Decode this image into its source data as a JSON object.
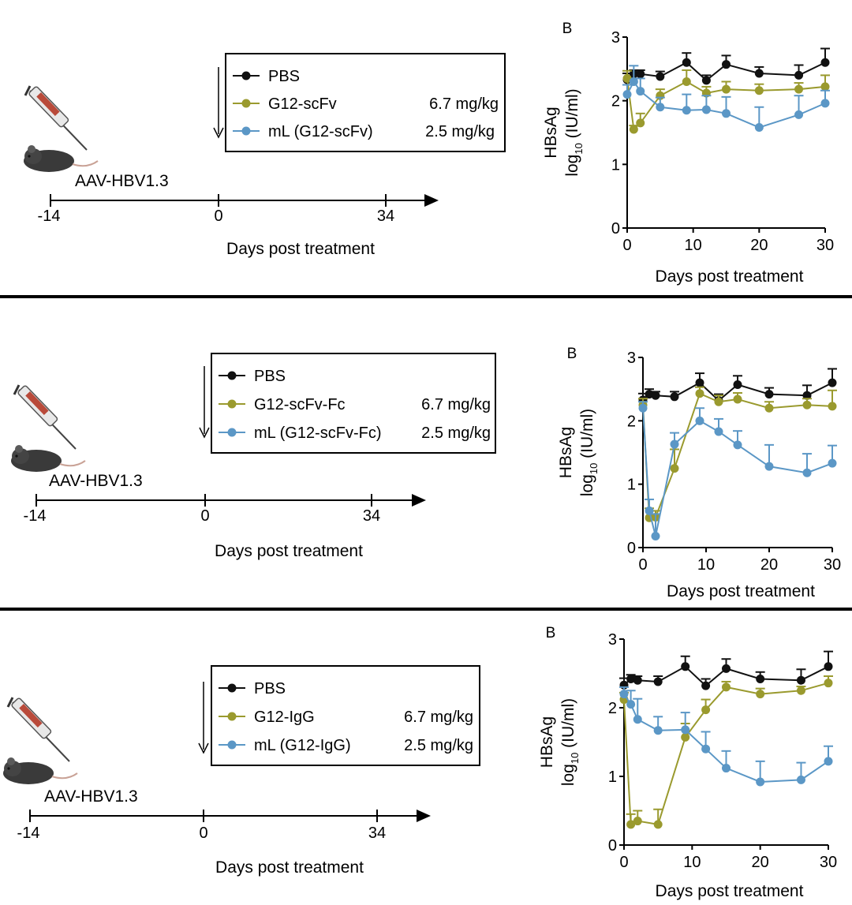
{
  "common": {
    "model_label": "AAV-HBV1.3",
    "timeline_ticks": [
      "-14",
      "0",
      "34"
    ],
    "timeline_xlabel": "Days post treatment",
    "panel_letter": "B"
  },
  "panels": [
    {
      "legend": [
        {
          "label": "PBS",
          "dose": ""
        },
        {
          "label": "G12-scFv",
          "dose": "6.7 mg/kg"
        },
        {
          "label": "mL (G12-scFv)",
          "dose": "2.5 mg/kg"
        }
      ]
    },
    {
      "legend": [
        {
          "label": "PBS",
          "dose": ""
        },
        {
          "label": "G12-scFv-Fc",
          "dose": "6.7 mg/kg"
        },
        {
          "label": "mL (G12-scFv-Fc)",
          "dose": "2.5 mg/kg"
        }
      ]
    },
    {
      "legend": [
        {
          "label": "PBS",
          "dose": ""
        },
        {
          "label": "G12-IgG",
          "dose": "6.7 mg/kg"
        },
        {
          "label": "mL (G12-IgG)",
          "dose": "2.5 mg/kg"
        }
      ]
    }
  ],
  "chart_data": [
    {
      "type": "line",
      "title": "B",
      "xlabel": "Days post treatment",
      "ylabel_line1": "HBsAg",
      "ylabel_log": "log",
      "ylabel_sub": "10",
      "ylabel_unit": "(IU/ml)",
      "xlim": [
        0,
        30
      ],
      "ylim": [
        0,
        3
      ],
      "xticks": [
        0,
        10,
        20,
        30
      ],
      "yticks": [
        0,
        1,
        2,
        3
      ],
      "xtick_labels": [
        "0",
        "10",
        "20",
        "30"
      ],
      "ytick_labels": [
        "0",
        "1",
        "2",
        "3"
      ],
      "x": [
        0,
        1,
        2,
        5,
        9,
        12,
        15,
        20,
        26,
        30
      ],
      "series": [
        {
          "name": "PBS",
          "color": "#111111",
          "values": [
            2.33,
            2.42,
            2.42,
            2.38,
            2.6,
            2.32,
            2.57,
            2.43,
            2.4,
            2.6
          ],
          "errors": [
            0.1,
            0.06,
            0.06,
            0.08,
            0.15,
            0.08,
            0.14,
            0.1,
            0.16,
            0.22
          ]
        },
        {
          "name": "G12-scFv",
          "color": "#9a9a2e",
          "values": [
            2.35,
            1.55,
            1.65,
            2.08,
            2.3,
            2.12,
            2.18,
            2.16,
            2.18,
            2.22
          ],
          "errors": [
            0.12,
            0.06,
            0.15,
            0.1,
            0.18,
            0.1,
            0.12,
            0.1,
            0.1,
            0.18
          ]
        },
        {
          "name": "mL (G12-scFv)",
          "color": "#5b97c6",
          "values": [
            2.1,
            2.3,
            2.15,
            1.9,
            1.85,
            1.86,
            1.8,
            1.58,
            1.78,
            1.96
          ],
          "errors": [
            0.15,
            0.25,
            0.2,
            0.15,
            0.25,
            0.22,
            0.26,
            0.32,
            0.3,
            0.2
          ]
        }
      ]
    },
    {
      "type": "line",
      "title": "B",
      "xlabel": "Days post treatment",
      "ylabel_line1": "HBsAg",
      "ylabel_log": "log",
      "ylabel_sub": "10",
      "ylabel_unit": "(IU/ml)",
      "xlim": [
        0,
        30
      ],
      "ylim": [
        0,
        3
      ],
      "xticks": [
        0,
        10,
        20,
        30
      ],
      "yticks": [
        0,
        1,
        2,
        3
      ],
      "xtick_labels": [
        "0",
        "10",
        "20",
        "30"
      ],
      "ytick_labels": [
        "0",
        "1",
        "2",
        "3"
      ],
      "x": [
        0,
        1,
        2,
        5,
        9,
        12,
        15,
        20,
        26,
        30
      ],
      "series": [
        {
          "name": "PBS",
          "color": "#111111",
          "values": [
            2.33,
            2.42,
            2.4,
            2.38,
            2.6,
            2.32,
            2.57,
            2.42,
            2.4,
            2.6
          ],
          "errors": [
            0.1,
            0.08,
            0.06,
            0.08,
            0.15,
            0.1,
            0.14,
            0.1,
            0.16,
            0.22
          ]
        },
        {
          "name": "G12-scFv-Fc",
          "color": "#9a9a2e",
          "values": [
            2.25,
            0.47,
            0.48,
            1.25,
            2.43,
            2.3,
            2.34,
            2.2,
            2.25,
            2.23
          ],
          "errors": [
            0.1,
            0.15,
            0.1,
            0.3,
            0.1,
            0.1,
            0.1,
            0.1,
            0.1,
            0.25
          ]
        },
        {
          "name": "mL (G12-scFv-Fc)",
          "color": "#5b97c6",
          "values": [
            2.2,
            0.58,
            0.18,
            1.63,
            2.0,
            1.83,
            1.62,
            1.28,
            1.18,
            1.33
          ],
          "errors": [
            0.1,
            0.18,
            0.35,
            0.18,
            0.2,
            0.2,
            0.22,
            0.34,
            0.3,
            0.28
          ]
        }
      ]
    },
    {
      "type": "line",
      "title": "B",
      "xlabel": "Days post treatment",
      "ylabel_line1": "HBsAg",
      "ylabel_log": "log",
      "ylabel_sub": "10",
      "ylabel_unit": "(IU/ml)",
      "xlim": [
        0,
        30
      ],
      "ylim": [
        0,
        3
      ],
      "xticks": [
        0,
        10,
        20,
        30
      ],
      "yticks": [
        0,
        1,
        2,
        3
      ],
      "xtick_labels": [
        "0",
        "10",
        "20",
        "30"
      ],
      "ytick_labels": [
        "0",
        "1",
        "2",
        "3"
      ],
      "x": [
        0,
        1,
        2,
        5,
        9,
        12,
        15,
        20,
        26,
        30
      ],
      "series": [
        {
          "name": "PBS",
          "color": "#111111",
          "values": [
            2.33,
            2.42,
            2.4,
            2.38,
            2.6,
            2.32,
            2.57,
            2.42,
            2.4,
            2.6
          ],
          "errors": [
            0.1,
            0.06,
            0.06,
            0.08,
            0.15,
            0.1,
            0.14,
            0.1,
            0.16,
            0.22
          ]
        },
        {
          "name": "G12-IgG",
          "color": "#9a9a2e",
          "values": [
            2.12,
            0.3,
            0.35,
            0.3,
            1.57,
            1.97,
            2.3,
            2.2,
            2.25,
            2.36
          ],
          "errors": [
            0.1,
            0.15,
            0.15,
            0.22,
            0.2,
            0.15,
            0.08,
            0.08,
            0.06,
            0.1
          ]
        },
        {
          "name": "mL (G12-IgG)",
          "color": "#5b97c6",
          "values": [
            2.2,
            2.05,
            1.83,
            1.67,
            1.68,
            1.4,
            1.12,
            0.92,
            0.95,
            1.22
          ],
          "errors": [
            0.1,
            0.2,
            0.3,
            0.2,
            0.25,
            0.25,
            0.25,
            0.3,
            0.25,
            0.22
          ]
        }
      ]
    }
  ]
}
